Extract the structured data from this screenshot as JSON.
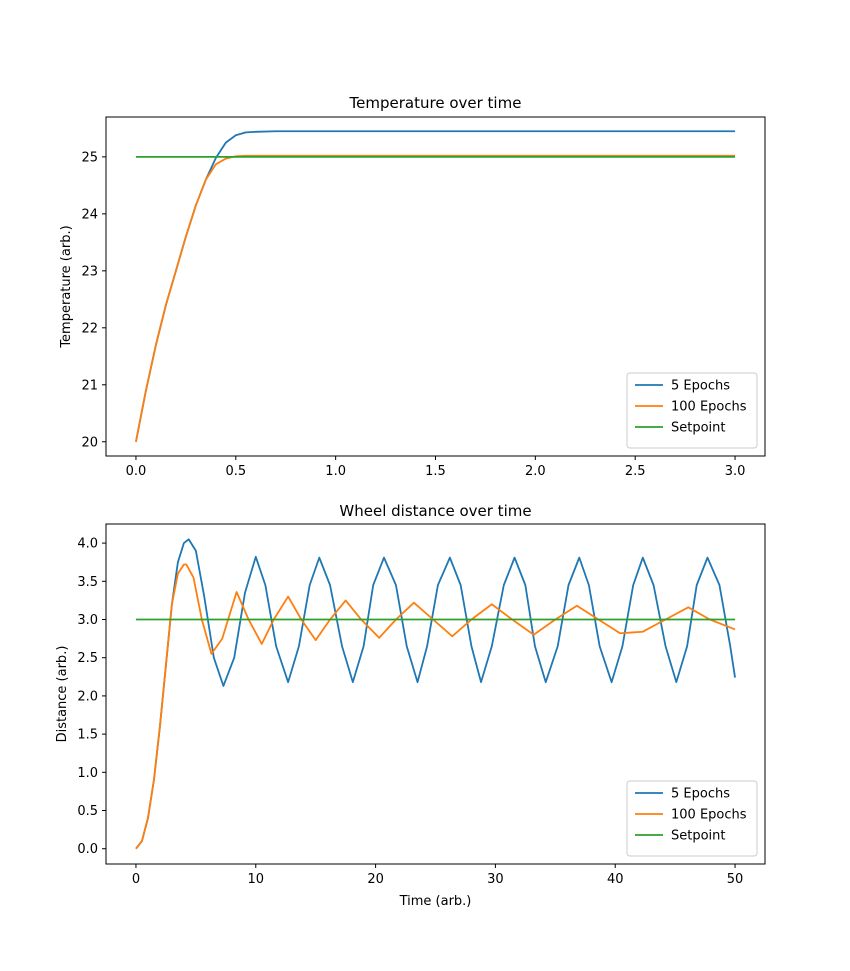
{
  "chart_data": [
    {
      "type": "line",
      "title": "Temperature over time",
      "xlabel": "",
      "ylabel": "Temperature (arb.)",
      "xlim": [
        -0.15,
        3.15
      ],
      "ylim": [
        19.75,
        25.7
      ],
      "xticks": [
        0.0,
        0.5,
        1.0,
        1.5,
        2.0,
        2.5,
        3.0
      ],
      "xtick_labels": [
        "0.0",
        "0.5",
        "1.0",
        "1.5",
        "2.0",
        "2.5",
        "3.0"
      ],
      "yticks": [
        20,
        21,
        22,
        23,
        24,
        25
      ],
      "ytick_labels": [
        "20",
        "21",
        "22",
        "23",
        "24",
        "25"
      ],
      "grid": false,
      "legend_position": "bottom-right",
      "series": [
        {
          "name": "5 Epochs",
          "color": "#1f77b4",
          "x": [
            0,
            0.05,
            0.1,
            0.15,
            0.2,
            0.25,
            0.3,
            0.35,
            0.4,
            0.45,
            0.5,
            0.55,
            0.6,
            0.7,
            0.8,
            1.0,
            1.5,
            2.0,
            2.5,
            3.0
          ],
          "y": [
            20.0,
            20.9,
            21.7,
            22.4,
            23.0,
            23.6,
            24.15,
            24.6,
            24.98,
            25.25,
            25.38,
            25.43,
            25.44,
            25.45,
            25.45,
            25.45,
            25.45,
            25.45,
            25.45,
            25.45
          ]
        },
        {
          "name": "100 Epochs",
          "color": "#ff7f0e",
          "x": [
            0,
            0.05,
            0.1,
            0.15,
            0.2,
            0.25,
            0.3,
            0.35,
            0.4,
            0.45,
            0.5,
            0.55,
            0.6,
            0.7,
            1.0,
            1.5,
            2.0,
            2.5,
            3.0
          ],
          "y": [
            20.0,
            20.9,
            21.7,
            22.4,
            23.0,
            23.6,
            24.15,
            24.6,
            24.87,
            24.97,
            25.01,
            25.02,
            25.02,
            25.02,
            25.02,
            25.02,
            25.02,
            25.02,
            25.02
          ]
        },
        {
          "name": "Setpoint",
          "color": "#2ca02c",
          "x": [
            0,
            3.0
          ],
          "y": [
            25.0,
            25.0
          ]
        }
      ]
    },
    {
      "type": "line",
      "title": "Wheel distance over time",
      "xlabel": "Time (arb.)",
      "ylabel": "Distance (arb.)",
      "xlim": [
        -2.5,
        52.5
      ],
      "ylim": [
        -0.2,
        4.25
      ],
      "xticks": [
        0,
        10,
        20,
        30,
        40,
        50
      ],
      "xtick_labels": [
        "0",
        "10",
        "20",
        "30",
        "40",
        "50"
      ],
      "yticks": [
        0.0,
        0.5,
        1.0,
        1.5,
        2.0,
        2.5,
        3.0,
        3.5,
        4.0
      ],
      "ytick_labels": [
        "0.0",
        "0.5",
        "1.0",
        "1.5",
        "2.0",
        "2.5",
        "3.0",
        "3.5",
        "4.0"
      ],
      "grid": false,
      "legend_position": "bottom-right",
      "series": [
        {
          "name": "5 Epochs",
          "color": "#1f77b4",
          "x": [
            0,
            0.5,
            1,
            1.5,
            2,
            2.5,
            3,
            3.5,
            4,
            4.4,
            5,
            5.7,
            6.5,
            7.3,
            8.2,
            9.1,
            10.0,
            10.8,
            11.7,
            12.7,
            13.6,
            14.5,
            15.3,
            16.2,
            17.2,
            18.1,
            19.0,
            19.8,
            20.7,
            21.7,
            22.6,
            23.5,
            24.3,
            25.2,
            26.2,
            27.1,
            28.0,
            28.8,
            29.7,
            30.7,
            31.6,
            32.5,
            33.3,
            34.2,
            35.2,
            36.1,
            37.0,
            37.8,
            38.7,
            39.7,
            40.6,
            41.5,
            42.3,
            43.2,
            44.2,
            45.1,
            46.0,
            46.8,
            47.7,
            48.7,
            49.6,
            50.0
          ],
          "y": [
            0.0,
            0.1,
            0.4,
            0.9,
            1.6,
            2.4,
            3.2,
            3.75,
            4.0,
            4.05,
            3.9,
            3.3,
            2.5,
            2.13,
            2.5,
            3.35,
            3.82,
            3.45,
            2.65,
            2.18,
            2.65,
            3.45,
            3.81,
            3.45,
            2.65,
            2.18,
            2.65,
            3.45,
            3.81,
            3.45,
            2.65,
            2.18,
            2.65,
            3.45,
            3.81,
            3.45,
            2.65,
            2.18,
            2.65,
            3.45,
            3.81,
            3.45,
            2.65,
            2.18,
            2.65,
            3.45,
            3.81,
            3.45,
            2.65,
            2.18,
            2.65,
            3.45,
            3.81,
            3.45,
            2.65,
            2.18,
            2.65,
            3.45,
            3.81,
            3.45,
            2.65,
            2.24
          ]
        },
        {
          "name": "100 Epochs",
          "color": "#ff7f0e",
          "x": [
            0,
            0.5,
            1,
            1.5,
            2,
            2.5,
            3,
            3.5,
            4,
            4.2,
            4.8,
            5.5,
            6.3,
            7.2,
            8.4,
            9.4,
            10.5,
            11.5,
            12.7,
            13.8,
            15.0,
            16.2,
            17.5,
            18.8,
            20.3,
            21.7,
            23.2,
            24.8,
            26.4,
            28.0,
            29.7,
            31.4,
            33.2,
            35.0,
            36.8,
            38.6,
            40.4,
            42.3,
            44.2,
            46.1,
            47.9,
            50.0
          ],
          "y": [
            0.0,
            0.1,
            0.4,
            0.9,
            1.6,
            2.4,
            3.2,
            3.6,
            3.72,
            3.72,
            3.55,
            3.0,
            2.55,
            2.75,
            3.36,
            3.0,
            2.68,
            3.0,
            3.3,
            3.0,
            2.73,
            3.0,
            3.25,
            3.0,
            2.76,
            3.0,
            3.22,
            3.0,
            2.78,
            3.0,
            3.2,
            3.0,
            2.8,
            3.0,
            3.18,
            3.0,
            2.82,
            2.84,
            3.0,
            3.16,
            3.0,
            2.87
          ]
        },
        {
          "name": "Setpoint",
          "color": "#2ca02c",
          "x": [
            0,
            50
          ],
          "y": [
            3.0,
            3.0
          ]
        }
      ]
    }
  ]
}
